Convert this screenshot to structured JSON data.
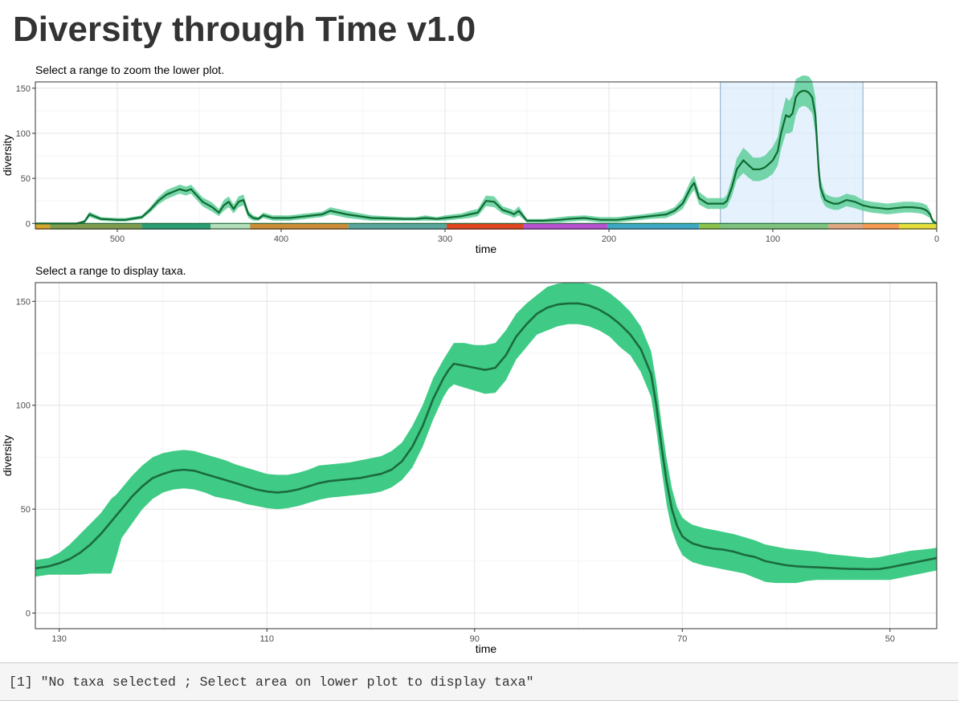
{
  "page": {
    "title": "Diversity through Time v1.0"
  },
  "console": {
    "text": "[1] \"No taxa selected ; Select area on lower plot to display taxa\""
  },
  "colors": {
    "band": "#3fcb85",
    "band_alpha_upper": "#5fcf9a",
    "line_dark": "#1b6b3f",
    "line_upper": "#0f6a31",
    "brush_fill": "#cfe8fb",
    "brush_stroke": "#8aaac4"
  },
  "chart_data": [
    {
      "id": "upper",
      "type": "area",
      "subtitle": "Select a range to zoom the lower plot.",
      "xlabel": "time",
      "ylabel": "diversity",
      "x_reversed": true,
      "xlim": [
        550,
        0
      ],
      "ylim": [
        -6,
        157
      ],
      "x_ticks": [
        500,
        400,
        300,
        200,
        100,
        0
      ],
      "y_ticks": [
        0,
        50,
        100,
        150
      ],
      "grid": true,
      "brush": {
        "x_from": 132,
        "x_to": 45
      },
      "timescale": [
        {
          "from": 550,
          "to": 541,
          "color": "#d6a42b"
        },
        {
          "from": 541,
          "to": 485,
          "color": "#7e9b4f"
        },
        {
          "from": 485,
          "to": 443,
          "color": "#2c9c73"
        },
        {
          "from": 443,
          "to": 419,
          "color": "#b2dfb9"
        },
        {
          "from": 419,
          "to": 359,
          "color": "#cb8c37"
        },
        {
          "from": 359,
          "to": 299,
          "color": "#5aa59c"
        },
        {
          "from": 299,
          "to": 252,
          "color": "#e0461f"
        },
        {
          "from": 252,
          "to": 201,
          "color": "#b651d0"
        },
        {
          "from": 201,
          "to": 145,
          "color": "#3ea8c4"
        },
        {
          "from": 145,
          "to": 132,
          "color": "#8cc24b"
        },
        {
          "from": 132,
          "to": 66,
          "color": "#7ec27e"
        },
        {
          "from": 66,
          "to": 45,
          "color": "#e0a882"
        },
        {
          "from": 45,
          "to": 23,
          "color": "#f59a50"
        },
        {
          "from": 23,
          "to": 0,
          "color": "#e4dd3b"
        }
      ],
      "series": [
        {
          "x": [
            550,
            540,
            525,
            520,
            517,
            510,
            500,
            495,
            485,
            480,
            475,
            470,
            462,
            458,
            455,
            452,
            448,
            442,
            438,
            435,
            432,
            429,
            426,
            423,
            420,
            417,
            414,
            411,
            405,
            395,
            385,
            375,
            370,
            360,
            345,
            325,
            318,
            312,
            305,
            300,
            295,
            290,
            285,
            280,
            275,
            270,
            265,
            260,
            258,
            255,
            250,
            240,
            230,
            225,
            215,
            210,
            205,
            200,
            195,
            190,
            185,
            175,
            165,
            160,
            155,
            150,
            148,
            145,
            140,
            135,
            132,
            130,
            128,
            125,
            122,
            118,
            115,
            112,
            108,
            105,
            103,
            100,
            97,
            95,
            92,
            90,
            88,
            86,
            84,
            82,
            80,
            78,
            76,
            74,
            72,
            71,
            70,
            69,
            68,
            67,
            66,
            63,
            60,
            55,
            50,
            45,
            40,
            35,
            30,
            25,
            20,
            15,
            10,
            8,
            6,
            4,
            3,
            2,
            1,
            0
          ],
          "y": [
            0,
            0,
            0,
            0,
            0,
            0,
            0,
            0,
            0,
            0,
            0,
            0,
            0,
            0,
            0,
            0,
            0,
            0,
            0,
            0,
            0,
            0,
            0,
            0,
            0,
            0,
            0,
            0,
            0,
            0,
            0,
            0,
            0,
            0,
            0,
            0,
            0,
            0,
            0,
            0,
            0,
            0,
            0,
            0,
            0,
            0,
            0,
            0,
            0,
            0,
            0,
            0,
            0,
            0,
            0,
            0,
            0,
            0,
            0,
            0,
            0,
            0,
            0,
            0,
            0,
            0,
            0,
            0,
            0,
            0,
            0,
            0,
            0,
            0,
            0,
            0,
            0,
            0,
            0,
            0,
            0,
            0,
            0,
            0,
            0,
            0,
            0,
            0,
            0,
            0,
            0,
            0,
            0,
            0,
            0,
            0,
            0,
            0,
            0,
            0,
            0,
            0,
            0,
            0,
            0,
            0,
            0,
            0,
            0,
            0,
            0,
            0,
            0,
            0,
            0,
            0,
            0,
            0,
            0,
            0
          ],
          "mean": [
            0,
            0,
            0,
            2,
            10,
            5,
            4,
            4,
            7,
            15,
            25,
            32,
            38,
            36,
            38,
            32,
            24,
            18,
            12,
            20,
            24,
            16,
            24,
            26,
            10,
            6,
            5,
            9,
            6,
            6,
            8,
            10,
            14,
            10,
            6,
            5,
            5,
            6,
            5,
            6,
            7,
            8,
            10,
            12,
            25,
            24,
            15,
            12,
            10,
            14,
            3,
            3,
            4,
            5,
            6,
            5,
            4,
            4,
            4,
            5,
            6,
            8,
            10,
            14,
            22,
            40,
            45,
            28,
            22,
            22,
            22,
            22,
            25,
            40,
            60,
            70,
            65,
            60,
            60,
            62,
            65,
            70,
            80,
            100,
            120,
            118,
            122,
            140,
            145,
            147,
            147,
            145,
            140,
            120,
            60,
            40,
            35,
            30,
            26,
            25,
            24,
            22,
            22,
            26,
            24,
            20,
            18,
            17,
            16,
            17,
            18,
            18,
            17,
            16,
            14,
            10,
            5,
            2,
            1,
            0
          ],
          "lower": [
            0,
            0,
            0,
            0,
            7,
            3,
            2,
            2,
            5,
            12,
            21,
            27,
            33,
            31,
            33,
            27,
            19,
            13,
            8,
            14,
            18,
            11,
            18,
            20,
            6,
            3,
            3,
            6,
            3,
            3,
            5,
            7,
            10,
            6,
            3,
            3,
            3,
            3,
            3,
            3,
            4,
            5,
            6,
            8,
            19,
            18,
            11,
            8,
            6,
            9,
            1,
            1,
            1,
            2,
            3,
            2,
            1,
            1,
            1,
            2,
            3,
            5,
            6,
            10,
            16,
            32,
            37,
            21,
            16,
            16,
            16,
            16,
            18,
            30,
            48,
            56,
            51,
            47,
            47,
            49,
            51,
            55,
            64,
            82,
            100,
            100,
            102,
            120,
            128,
            130,
            130,
            127,
            122,
            100,
            48,
            30,
            26,
            22,
            19,
            18,
            17,
            15,
            15,
            19,
            17,
            14,
            12,
            11,
            10,
            11,
            12,
            12,
            11,
            10,
            8,
            6,
            2,
            0,
            0,
            0
          ],
          "upper": [
            0,
            0,
            0,
            4,
            13,
            7,
            6,
            6,
            9,
            18,
            29,
            37,
            43,
            41,
            43,
            37,
            29,
            23,
            16,
            26,
            30,
            21,
            30,
            32,
            14,
            9,
            7,
            12,
            9,
            9,
            11,
            13,
            18,
            14,
            9,
            7,
            7,
            9,
            7,
            9,
            10,
            11,
            14,
            16,
            31,
            30,
            19,
            16,
            14,
            19,
            5,
            5,
            7,
            8,
            9,
            8,
            7,
            7,
            7,
            8,
            9,
            11,
            14,
            18,
            28,
            48,
            53,
            35,
            28,
            28,
            28,
            28,
            32,
            50,
            72,
            84,
            79,
            73,
            73,
            75,
            79,
            85,
            96,
            118,
            140,
            136,
            142,
            160,
            162,
            164,
            164,
            163,
            158,
            140,
            72,
            50,
            44,
            38,
            33,
            32,
            31,
            29,
            29,
            33,
            31,
            26,
            24,
            23,
            22,
            23,
            24,
            24,
            23,
            22,
            20,
            14,
            8,
            4,
            2,
            1
          ]
        }
      ]
    },
    {
      "id": "lower",
      "type": "area",
      "subtitle": "Select a range to display taxa.",
      "xlabel": "time",
      "ylabel": "diversity",
      "x_reversed": true,
      "xlim": [
        132.3,
        45.5
      ],
      "ylim": [
        -7.5,
        159
      ],
      "x_ticks": [
        130,
        110,
        90,
        70,
        50
      ],
      "y_ticks": [
        0,
        50,
        100,
        150
      ],
      "grid": true,
      "series": [
        {
          "x": [
            132.3,
            131,
            130,
            129,
            128,
            127,
            126,
            125,
            124.5,
            124,
            123,
            122,
            121,
            120,
            119,
            118,
            117,
            116,
            115,
            114,
            113,
            112,
            111,
            110,
            109,
            108,
            107,
            106,
            105,
            104,
            103,
            102,
            101,
            100,
            99,
            98,
            97,
            96,
            95,
            94,
            93,
            92.5,
            92,
            91,
            90,
            89,
            88,
            87,
            86,
            85,
            84,
            83,
            82,
            81,
            80,
            79,
            78,
            77,
            76,
            75,
            74,
            73,
            72.5,
            72,
            71.5,
            71,
            70.5,
            70,
            69.5,
            69,
            68,
            67,
            66,
            65,
            64,
            63,
            62,
            61,
            60,
            59,
            58,
            57,
            56,
            55,
            54,
            53,
            52,
            51,
            50,
            49,
            48,
            47,
            46,
            45.5
          ],
          "mean": [
            21.5,
            22.5,
            24,
            26,
            29,
            33,
            38,
            44,
            47,
            50,
            56,
            61,
            65,
            67,
            68.5,
            69,
            68.5,
            67,
            65.5,
            64,
            62.5,
            61,
            59.5,
            58.5,
            58,
            58.5,
            59.5,
            61,
            62.5,
            63.5,
            64,
            64.5,
            65,
            66,
            67,
            69,
            73,
            80,
            90,
            103,
            113,
            117,
            120,
            119,
            118,
            117,
            118,
            124,
            133,
            139,
            144,
            147,
            148.5,
            149,
            149,
            148,
            146,
            143,
            139,
            134,
            127,
            115,
            100,
            80,
            63,
            50,
            42,
            37,
            35,
            33.5,
            32,
            31,
            30.5,
            29.5,
            28,
            27,
            25,
            24,
            23,
            22.5,
            22.2,
            22,
            21.8,
            21.5,
            21.3,
            21.2,
            21.1,
            21.2,
            22,
            23,
            24,
            25,
            26,
            26.5
          ],
          "lower": [
            17.5,
            18.5,
            18.5,
            18.5,
            18.5,
            19,
            19,
            19,
            27,
            36,
            43,
            50,
            55,
            58,
            59.5,
            60,
            59.5,
            58,
            56,
            55,
            54,
            52.5,
            51.5,
            50.5,
            50,
            50.5,
            51.5,
            53,
            54.5,
            55.5,
            56,
            56.5,
            57,
            57.5,
            58.5,
            60.5,
            64,
            70,
            80,
            93,
            104,
            108,
            110,
            108.5,
            107,
            105.5,
            106,
            112,
            122,
            128,
            134,
            136,
            138,
            139,
            139,
            138,
            136,
            133,
            128,
            124,
            116,
            104,
            88,
            69,
            52,
            40,
            33,
            28,
            26,
            24.5,
            23,
            22,
            21,
            20,
            19,
            17,
            15,
            14.5,
            14.5,
            14.5,
            15.5,
            16,
            16,
            16,
            16,
            16,
            16,
            16,
            16,
            17,
            18,
            19,
            20,
            20.5
          ],
          "upper": [
            25.5,
            26.5,
            29,
            33,
            38,
            43,
            48,
            55,
            57,
            60,
            66,
            71,
            75,
            77,
            78,
            78.5,
            78,
            76.5,
            75,
            73.5,
            71.5,
            70,
            68.5,
            67,
            66.5,
            66.5,
            67.5,
            69,
            71,
            71.5,
            72,
            72.5,
            73.5,
            74.5,
            75.5,
            78,
            82,
            90,
            100,
            113,
            122,
            126,
            130,
            130,
            129,
            129,
            130,
            136,
            144,
            149,
            153,
            157,
            158.5,
            159,
            159,
            158.5,
            157,
            154,
            150,
            145,
            138,
            126,
            111,
            91,
            74,
            60,
            51,
            46,
            44,
            42.5,
            41,
            40,
            39,
            38,
            36.5,
            35,
            33,
            32,
            31,
            30.5,
            30,
            29.5,
            28.5,
            28,
            27.5,
            27,
            26.5,
            27,
            28,
            29,
            30,
            30.5,
            31,
            31.5
          ]
        }
      ]
    }
  ]
}
